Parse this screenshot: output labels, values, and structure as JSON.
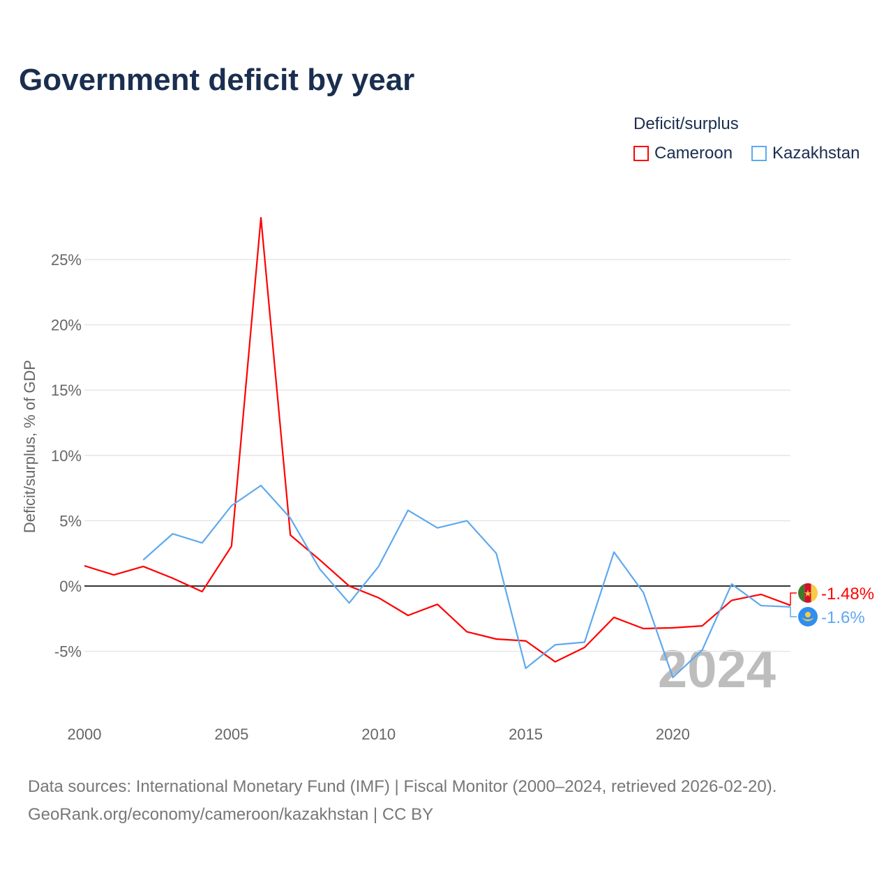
{
  "chart_data": {
    "type": "line",
    "title": "Government deficit by year",
    "xlabel": "",
    "ylabel": "Deficit/surplus, % of GDP",
    "legend_title": "Deficit/surplus",
    "legend_position": "top-right",
    "xlim": [
      2000,
      2024
    ],
    "ylim": [
      -10,
      29
    ],
    "x_ticks": [
      "2000",
      "2005",
      "2010",
      "2015",
      "2020"
    ],
    "y_ticks": [
      {
        "v": -5,
        "label": "-5%"
      },
      {
        "v": 0,
        "label": "0%"
      },
      {
        "v": 5,
        "label": "5%"
      },
      {
        "v": 10,
        "label": "10%"
      },
      {
        "v": 15,
        "label": "15%"
      },
      {
        "v": 20,
        "label": "20%"
      },
      {
        "v": 25,
        "label": "25%"
      }
    ],
    "year_watermark": "2024",
    "series": [
      {
        "name": "Cameroon",
        "color": "#ff0000",
        "end_label": "-1.48%",
        "x": [
          2000,
          2001,
          2002,
          2003,
          2004,
          2005,
          2006,
          2007,
          2008,
          2009,
          2010,
          2011,
          2012,
          2013,
          2014,
          2015,
          2016,
          2017,
          2018,
          2019,
          2020,
          2021,
          2022,
          2023,
          2024
        ],
        "values": [
          1.55,
          0.85,
          1.5,
          0.6,
          -0.43,
          3.05,
          28.2,
          3.9,
          2.0,
          0.0,
          -0.9,
          -2.25,
          -1.4,
          -3.5,
          -4.06,
          -4.2,
          -5.8,
          -4.7,
          -2.4,
          -3.26,
          -3.2,
          -3.05,
          -1.1,
          -0.64,
          -1.48
        ]
      },
      {
        "name": "Kazakhstan",
        "color": "#5ea9ee",
        "end_label": "-1.6%",
        "x": [
          2002,
          2003,
          2004,
          2005,
          2006,
          2007,
          2008,
          2009,
          2010,
          2011,
          2012,
          2013,
          2014,
          2015,
          2016,
          2017,
          2018,
          2019,
          2020,
          2021,
          2022,
          2023,
          2024
        ],
        "values": [
          2.0,
          4.0,
          3.3,
          6.15,
          7.7,
          5.2,
          1.3,
          -1.3,
          1.5,
          5.8,
          4.45,
          5.0,
          2.5,
          -6.3,
          -4.5,
          -4.3,
          2.6,
          -0.5,
          -7.0,
          -4.9,
          0.15,
          -1.5,
          -1.6
        ]
      }
    ]
  },
  "footer": {
    "line1": "Data sources: International Monetary Fund (IMF) | Fiscal Monitor (2000–2024, retrieved 2026-02-20).",
    "line2": "GeoRank.org/economy/cameroon/kazakhstan | CC BY"
  }
}
